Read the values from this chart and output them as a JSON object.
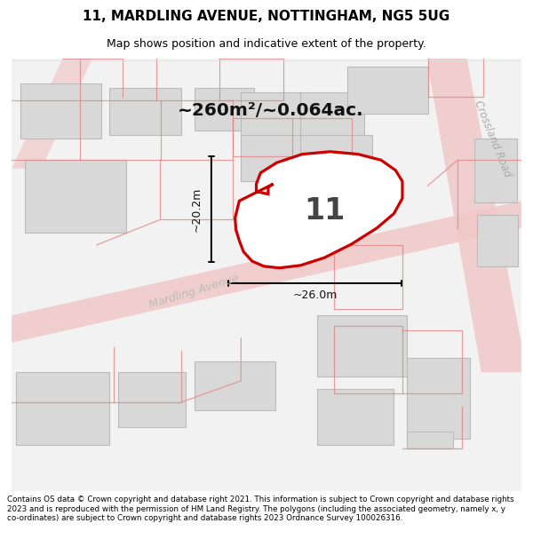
{
  "title": "11, MARDLING AVENUE, NOTTINGHAM, NG5 5UG",
  "subtitle": "Map shows position and indicative extent of the property.",
  "footer": "Contains OS data © Crown copyright and database right 2021. This information is subject to Crown copyright and database rights 2023 and is reproduced with the permission of HM Land Registry. The polygons (including the associated geometry, namely x, y co-ordinates) are subject to Crown copyright and database rights 2023 Ordnance Survey 100026316.",
  "map_bg": "#f2f2f2",
  "road_color_fill": "#f0c8c8",
  "road_color_line": "#e08888",
  "building_fill": "#d8d8d8",
  "building_edge": "#bbbbbb",
  "highlight_fill": "#ffffff",
  "highlight_edge": "#cc0000",
  "property_number": "11",
  "area_text": "~260m²/~0.064ac.",
  "dim_width": "~26.0m",
  "dim_height": "~20.2m",
  "crossland_road_label": "Crossland Road",
  "mardling_avenue_label": "Mardling Avenue",
  "title_fontsize": 11,
  "subtitle_fontsize": 9,
  "footer_fontsize": 6.3
}
